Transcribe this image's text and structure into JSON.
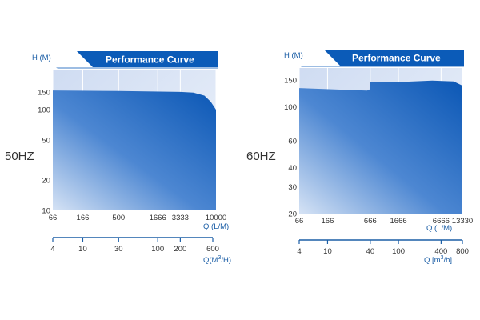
{
  "chart_data": [
    {
      "type": "area",
      "title": "Performance Curve",
      "side_label": "50HZ",
      "ylabel": "H (M)",
      "xlabel": "Q (L/M)",
      "xlabel2_main": "Q(M",
      "xlabel2_sup": "3",
      "xlabel2_end": "/H)",
      "y_scale": "log",
      "ylim": [
        10,
        250
      ],
      "y_ticks": [
        "10",
        "20",
        "50",
        "100",
        "150"
      ],
      "x_scale": "log",
      "xlim": [
        66,
        10000
      ],
      "x_ticks": [
        "66",
        "166",
        "500",
        "1666",
        "3333",
        "10000"
      ],
      "x2_ticks": [
        "4",
        "10",
        "30",
        "100",
        "200",
        "600"
      ],
      "envelope": {
        "x": [
          66,
          500,
          3333,
          5000,
          7000,
          8500,
          10000
        ],
        "y": [
          155,
          153,
          150,
          148,
          138,
          120,
          100
        ]
      }
    },
    {
      "type": "area",
      "title": "Performance Curve",
      "side_label": "60HZ",
      "ylabel": "H (M)",
      "xlabel": "Q (L/M)",
      "xlabel2_main": "Q [m",
      "xlabel2_sup": "3",
      "xlabel2_end": "/h]",
      "y_scale": "log",
      "ylim": [
        20,
        180
      ],
      "y_ticks": [
        "20",
        "30",
        "40",
        "60",
        "100",
        "150"
      ],
      "x_scale": "log",
      "xlim": [
        66,
        13330
      ],
      "x_ticks": [
        "66",
        "166",
        "666",
        "1666",
        "6666",
        "13330"
      ],
      "x2_ticks": [
        "4",
        "10",
        "40",
        "100",
        "400",
        "800"
      ],
      "envelope": {
        "x": [
          66,
          600,
          650,
          666,
          2000,
          5000,
          7000,
          10000,
          13330
        ],
        "y": [
          133,
          128,
          130,
          145,
          146,
          149,
          148,
          147,
          138
        ]
      }
    }
  ]
}
